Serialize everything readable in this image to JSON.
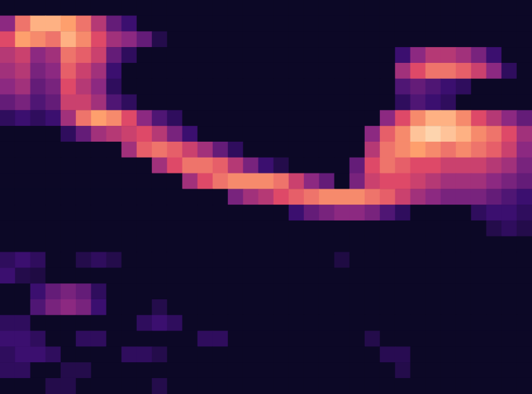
{
  "chart_data": {
    "type": "heatmap",
    "color": "magma",
    "tick_labels": false,
    "zlim": [
      0,
      100
    ],
    "values": [
      [
        0,
        0,
        0,
        0,
        0,
        0,
        0,
        0,
        0,
        0,
        0,
        0,
        0,
        0,
        0,
        0,
        0,
        0,
        0,
        0,
        0,
        0,
        0,
        0,
        0,
        0,
        0,
        0,
        0,
        0,
        0,
        0,
        0,
        0,
        0
      ],
      [
        40,
        70,
        85,
        85,
        80,
        70,
        50,
        30,
        20,
        0,
        0,
        0,
        0,
        0,
        0,
        0,
        0,
        0,
        0,
        0,
        0,
        0,
        0,
        0,
        0,
        0,
        0,
        0,
        0,
        0,
        0,
        0,
        0,
        0,
        0
      ],
      [
        60,
        80,
        75,
        70,
        85,
        75,
        60,
        45,
        40,
        30,
        10,
        0,
        0,
        0,
        0,
        0,
        0,
        0,
        0,
        0,
        0,
        0,
        0,
        0,
        0,
        0,
        0,
        0,
        0,
        0,
        0,
        0,
        0,
        0,
        0
      ],
      [
        50,
        55,
        40,
        45,
        70,
        65,
        55,
        30,
        15,
        0,
        0,
        0,
        0,
        0,
        0,
        0,
        0,
        0,
        0,
        0,
        0,
        0,
        0,
        0,
        0,
        0,
        20,
        40,
        50,
        50,
        45,
        35,
        20,
        0,
        0
      ],
      [
        45,
        50,
        35,
        40,
        65,
        55,
        45,
        20,
        0,
        0,
        0,
        0,
        0,
        0,
        0,
        0,
        0,
        0,
        0,
        0,
        0,
        0,
        0,
        0,
        0,
        0,
        45,
        60,
        70,
        70,
        65,
        55,
        40,
        15,
        0
      ],
      [
        40,
        45,
        30,
        35,
        60,
        50,
        40,
        15,
        0,
        0,
        0,
        0,
        0,
        0,
        0,
        0,
        0,
        0,
        0,
        0,
        0,
        0,
        0,
        0,
        0,
        0,
        25,
        30,
        25,
        20,
        15,
        0,
        0,
        0,
        0
      ],
      [
        30,
        35,
        25,
        30,
        55,
        55,
        45,
        25,
        15,
        0,
        0,
        0,
        0,
        0,
        0,
        0,
        0,
        0,
        0,
        0,
        0,
        0,
        0,
        0,
        0,
        0,
        15,
        25,
        20,
        15,
        0,
        0,
        0,
        0,
        0
      ],
      [
        15,
        20,
        15,
        20,
        45,
        70,
        80,
        75,
        60,
        40,
        25,
        15,
        0,
        0,
        0,
        0,
        0,
        0,
        0,
        0,
        0,
        0,
        0,
        0,
        0,
        40,
        60,
        75,
        85,
        85,
        75,
        60,
        50,
        40,
        30
      ],
      [
        0,
        0,
        0,
        0,
        15,
        30,
        45,
        50,
        55,
        60,
        50,
        35,
        20,
        0,
        0,
        0,
        0,
        0,
        0,
        0,
        0,
        0,
        0,
        0,
        40,
        65,
        75,
        90,
        95,
        90,
        85,
        75,
        70,
        60,
        45
      ],
      [
        0,
        0,
        0,
        0,
        0,
        0,
        0,
        0,
        45,
        65,
        70,
        65,
        55,
        45,
        30,
        15,
        0,
        0,
        0,
        0,
        0,
        0,
        0,
        0,
        50,
        70,
        75,
        80,
        75,
        70,
        75,
        70,
        65,
        55,
        40
      ],
      [
        0,
        0,
        0,
        0,
        0,
        0,
        0,
        0,
        0,
        0,
        45,
        60,
        70,
        70,
        65,
        50,
        35,
        20,
        10,
        0,
        0,
        0,
        0,
        30,
        60,
        70,
        65,
        60,
        60,
        55,
        55,
        55,
        50,
        45,
        35
      ],
      [
        0,
        0,
        0,
        0,
        0,
        0,
        0,
        0,
        0,
        0,
        0,
        0,
        45,
        60,
        70,
        75,
        75,
        75,
        70,
        55,
        40,
        30,
        0,
        35,
        55,
        60,
        60,
        55,
        50,
        45,
        45,
        45,
        40,
        35,
        30
      ],
      [
        0,
        0,
        0,
        0,
        0,
        0,
        0,
        0,
        0,
        0,
        0,
        0,
        0,
        0,
        0,
        35,
        45,
        50,
        60,
        65,
        70,
        75,
        75,
        75,
        70,
        65,
        55,
        45,
        40,
        35,
        35,
        35,
        30,
        25,
        20
      ],
      [
        0,
        0,
        0,
        0,
        0,
        0,
        0,
        0,
        0,
        0,
        0,
        0,
        0,
        0,
        0,
        0,
        0,
        0,
        0,
        20,
        30,
        35,
        40,
        40,
        35,
        25,
        15,
        0,
        0,
        0,
        0,
        15,
        20,
        20,
        15
      ],
      [
        0,
        0,
        0,
        0,
        0,
        0,
        0,
        0,
        0,
        0,
        0,
        0,
        0,
        0,
        0,
        0,
        0,
        0,
        0,
        0,
        0,
        0,
        0,
        0,
        0,
        0,
        0,
        0,
        0,
        0,
        0,
        0,
        10,
        15,
        10
      ],
      [
        0,
        0,
        0,
        0,
        0,
        0,
        0,
        0,
        0,
        0,
        0,
        0,
        0,
        0,
        0,
        0,
        0,
        0,
        0,
        0,
        0,
        0,
        0,
        0,
        0,
        0,
        0,
        0,
        0,
        0,
        0,
        0,
        0,
        0,
        0
      ],
      [
        15,
        20,
        15,
        0,
        0,
        10,
        15,
        10,
        0,
        0,
        0,
        0,
        0,
        0,
        0,
        0,
        0,
        0,
        0,
        0,
        0,
        0,
        8,
        0,
        0,
        0,
        0,
        0,
        0,
        0,
        0,
        0,
        0,
        0,
        0
      ],
      [
        20,
        10,
        8,
        0,
        0,
        0,
        0,
        0,
        0,
        0,
        0,
        0,
        0,
        0,
        0,
        0,
        0,
        0,
        0,
        0,
        0,
        0,
        0,
        0,
        0,
        0,
        0,
        0,
        0,
        0,
        0,
        0,
        0,
        0,
        0
      ],
      [
        0,
        0,
        20,
        30,
        35,
        30,
        15,
        0,
        0,
        0,
        0,
        0,
        0,
        0,
        0,
        0,
        0,
        0,
        0,
        0,
        0,
        0,
        0,
        0,
        0,
        0,
        0,
        0,
        0,
        0,
        0,
        0,
        0,
        0,
        0
      ],
      [
        0,
        0,
        25,
        35,
        40,
        35,
        20,
        0,
        0,
        0,
        10,
        0,
        0,
        0,
        0,
        0,
        0,
        0,
        0,
        0,
        0,
        0,
        0,
        0,
        0,
        0,
        0,
        0,
        0,
        0,
        0,
        0,
        0,
        0,
        0
      ],
      [
        15,
        15,
        0,
        0,
        0,
        0,
        0,
        0,
        0,
        15,
        20,
        15,
        0,
        0,
        0,
        0,
        0,
        0,
        0,
        0,
        0,
        0,
        0,
        0,
        0,
        0,
        0,
        0,
        0,
        0,
        0,
        0,
        0,
        0,
        0
      ],
      [
        20,
        20,
        15,
        0,
        0,
        15,
        15,
        0,
        0,
        0,
        0,
        0,
        0,
        15,
        15,
        0,
        0,
        0,
        0,
        0,
        0,
        0,
        0,
        0,
        10,
        0,
        0,
        0,
        0,
        0,
        0,
        0,
        0,
        0,
        0
      ],
      [
        15,
        20,
        20,
        15,
        0,
        0,
        0,
        0,
        15,
        15,
        10,
        0,
        0,
        0,
        0,
        0,
        0,
        0,
        0,
        0,
        0,
        0,
        0,
        0,
        0,
        12,
        12,
        0,
        0,
        0,
        0,
        0,
        0,
        0,
        0
      ],
      [
        15,
        15,
        0,
        0,
        10,
        10,
        0,
        0,
        0,
        0,
        0,
        0,
        0,
        0,
        0,
        0,
        0,
        0,
        0,
        0,
        0,
        0,
        0,
        0,
        0,
        0,
        10,
        0,
        0,
        0,
        0,
        0,
        0,
        0,
        0
      ],
      [
        0,
        0,
        0,
        10,
        10,
        0,
        0,
        0,
        0,
        0,
        10,
        0,
        0,
        0,
        0,
        0,
        0,
        0,
        0,
        0,
        0,
        0,
        0,
        0,
        0,
        0,
        0,
        0,
        0,
        0,
        0,
        0,
        0,
        0,
        0
      ]
    ]
  }
}
